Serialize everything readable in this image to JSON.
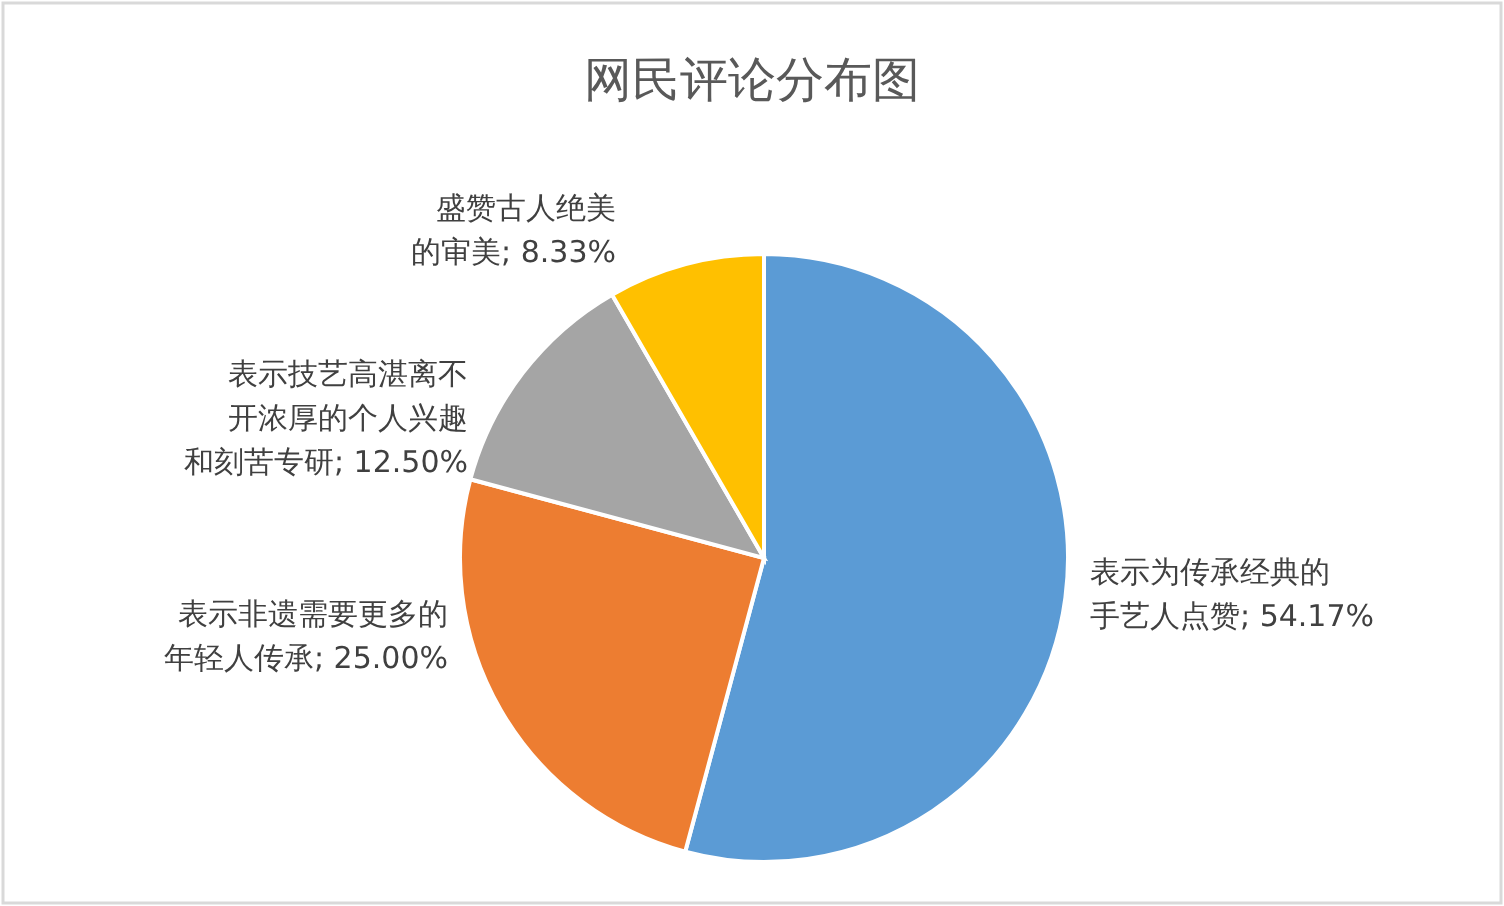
{
  "chart_data": {
    "type": "pie",
    "title": "网民评论分布图",
    "categories": [
      "表示为传承经典的手艺人点赞",
      "表示非遗需要更多的年轻人传承",
      "表示技艺高湛离不开浓厚的个人兴趣和刻苦专研",
      "盛赞古人绝美的审美"
    ],
    "values": [
      54.17,
      25.0,
      12.5,
      8.33
    ],
    "colors": [
      "#5b9bd5",
      "#ed7d31",
      "#a5a5a5",
      "#ffc000"
    ],
    "value_labels": [
      "; 54.17%",
      "; 25.00%",
      "; 12.50%",
      "; 8.33%"
    ]
  }
}
